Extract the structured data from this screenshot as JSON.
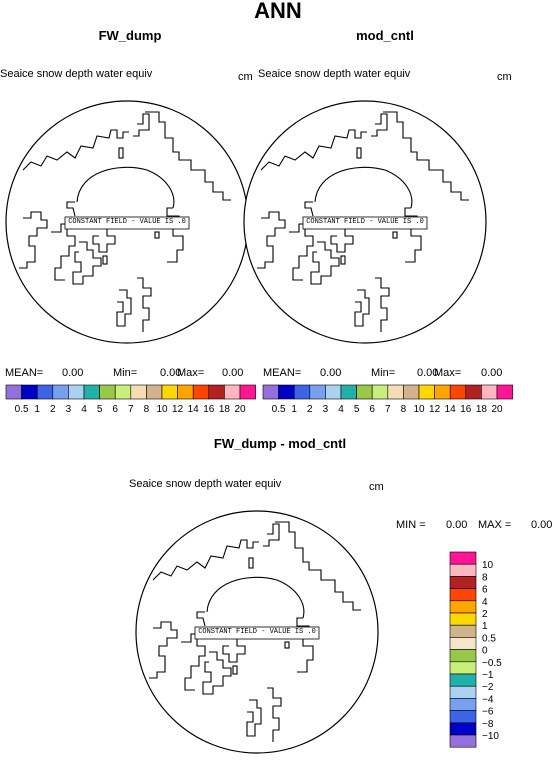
{
  "title": "ANN",
  "panels": [
    {
      "name": "FW_dump",
      "variable": "Seaice snow depth water equiv",
      "units": "cm",
      "constant_field_text": "CONSTANT FIELD - VALUE IS .0",
      "stats": {
        "mean_label": "MEAN=",
        "mean": "0.00",
        "min_label": "Min=",
        "min": "0.00",
        "max_label": "Max=",
        "max": "0.00"
      }
    },
    {
      "name": "mod_cntl",
      "variable": "Seaice snow depth water equiv",
      "units": "cm",
      "constant_field_text": "CONSTANT FIELD - VALUE IS .0",
      "stats": {
        "mean_label": "MEAN=",
        "mean": "0.00",
        "min_label": "Min=",
        "min": "0.00",
        "max_label": "Max=",
        "max": "0.00"
      }
    },
    {
      "name": "FW_dump - mod_cntl",
      "variable": "Seaice snow depth water equiv",
      "units": "cm",
      "constant_field_text": "CONSTANT FIELD - VALUE IS .0",
      "stats": {
        "min_label": "MIN =",
        "min": "0.00",
        "max_label": "MAX =",
        "max": "0.00"
      }
    }
  ],
  "colorbar_top": {
    "labels": [
      "0.5",
      "1",
      "2",
      "3",
      "4",
      "5",
      "6",
      "7",
      "8",
      "10",
      "12",
      "14",
      "16",
      "18",
      "20"
    ],
    "colors": [
      "#9370db",
      "#0000c8",
      "#3c64e6",
      "#78a0f0",
      "#aad2f0",
      "#20b2aa",
      "#98c846",
      "#c8f078",
      "#f5dcb4",
      "#d2b48c",
      "#ffd700",
      "#ffa500",
      "#ff4500",
      "#b22222",
      "#ffb6c1",
      "#ff1493"
    ]
  },
  "colorbar_diff": {
    "labels": [
      "10",
      "8",
      "6",
      "4",
      "2",
      "1",
      "0.5",
      "0",
      "−0.5",
      "−1",
      "−2",
      "−4",
      "−6",
      "−8",
      "−10"
    ],
    "colors": [
      "#ff1493",
      "#ffb6c1",
      "#b22222",
      "#ff4500",
      "#ffa500",
      "#ffd700",
      "#d2b48c",
      "#f5e6c8",
      "#98c846",
      "#c8f078",
      "#20b2aa",
      "#aad2f0",
      "#78a0f0",
      "#3c64e6",
      "#0000c8",
      "#9370db"
    ]
  }
}
